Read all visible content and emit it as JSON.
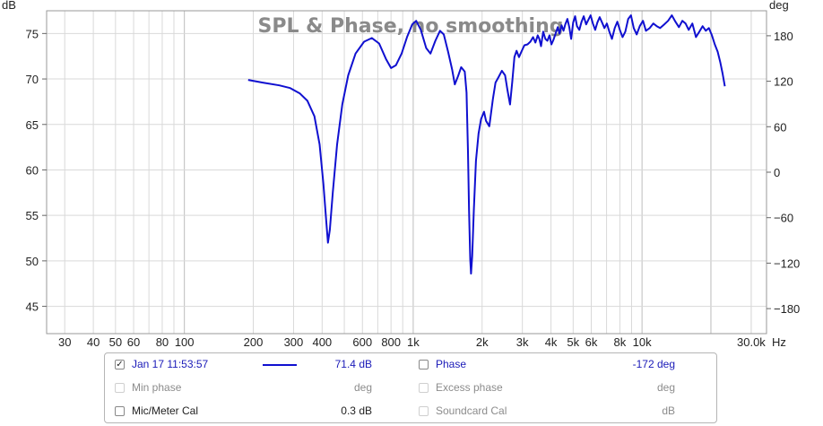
{
  "chart_data": {
    "type": "line",
    "title": "SPL & Phase, no smoothing",
    "x_unit": "Hz",
    "x_scale": "log",
    "x_range": [
      25,
      35000
    ],
    "x_ticks": [
      {
        "value": 30,
        "label": "30"
      },
      {
        "value": 40,
        "label": "40"
      },
      {
        "value": 50,
        "label": "50"
      },
      {
        "value": 60,
        "label": "60"
      },
      {
        "value": 80,
        "label": "80"
      },
      {
        "value": 100,
        "label": "100"
      },
      {
        "value": 200,
        "label": "200"
      },
      {
        "value": 300,
        "label": "300"
      },
      {
        "value": 400,
        "label": "400"
      },
      {
        "value": 600,
        "label": "600"
      },
      {
        "value": 800,
        "label": "800"
      },
      {
        "value": 1000,
        "label": "1k"
      },
      {
        "value": 2000,
        "label": "2k"
      },
      {
        "value": 3000,
        "label": "3k"
      },
      {
        "value": 4000,
        "label": "4k"
      },
      {
        "value": 5000,
        "label": "5k"
      },
      {
        "value": 6000,
        "label": "6k"
      },
      {
        "value": 8000,
        "label": "8k"
      },
      {
        "value": 10000,
        "label": "10k"
      },
      {
        "value": 30000,
        "label": "30.0k"
      }
    ],
    "x_unit_label": "Hz",
    "y_left_label": "dB",
    "y_left_range": [
      42,
      77.5
    ],
    "y_left_ticks": [
      45,
      50,
      55,
      60,
      65,
      70,
      75
    ],
    "y_right_label": "deg",
    "y_right_range": [
      -213,
      213
    ],
    "y_right_ticks": [
      -180,
      -120,
      -60,
      0,
      60,
      120,
      180
    ],
    "grid": true,
    "series": [
      {
        "name": "Jan 17 11:53:57",
        "color": "#1010d0",
        "points": [
          [
            190,
            69.9
          ],
          [
            220,
            69.6
          ],
          [
            260,
            69.3
          ],
          [
            290,
            69.0
          ],
          [
            320,
            68.4
          ],
          [
            345,
            67.6
          ],
          [
            370,
            65.9
          ],
          [
            390,
            62.8
          ],
          [
            405,
            58.5
          ],
          [
            418,
            54.0
          ],
          [
            424,
            52.0
          ],
          [
            432,
            53.4
          ],
          [
            445,
            57.5
          ],
          [
            465,
            62.8
          ],
          [
            490,
            67.2
          ],
          [
            520,
            70.4
          ],
          [
            560,
            72.8
          ],
          [
            610,
            74.1
          ],
          [
            660,
            74.5
          ],
          [
            710,
            73.9
          ],
          [
            760,
            72.2
          ],
          [
            800,
            71.2
          ],
          [
            840,
            71.5
          ],
          [
            890,
            72.8
          ],
          [
            940,
            74.6
          ],
          [
            990,
            76.0
          ],
          [
            1030,
            76.4
          ],
          [
            1080,
            75.4
          ],
          [
            1140,
            73.4
          ],
          [
            1190,
            72.8
          ],
          [
            1250,
            74.2
          ],
          [
            1310,
            75.3
          ],
          [
            1360,
            74.9
          ],
          [
            1420,
            73.0
          ],
          [
            1480,
            71.0
          ],
          [
            1520,
            69.4
          ],
          [
            1570,
            70.3
          ],
          [
            1620,
            71.3
          ],
          [
            1680,
            70.8
          ],
          [
            1710,
            68.5
          ],
          [
            1735,
            62.0
          ],
          [
            1755,
            55.5
          ],
          [
            1775,
            50.2
          ],
          [
            1790,
            48.6
          ],
          [
            1810,
            50.5
          ],
          [
            1840,
            55.5
          ],
          [
            1880,
            61.0
          ],
          [
            1930,
            64.0
          ],
          [
            1980,
            65.6
          ],
          [
            2040,
            66.4
          ],
          [
            2080,
            65.4
          ],
          [
            2150,
            64.8
          ],
          [
            2230,
            67.8
          ],
          [
            2290,
            69.6
          ],
          [
            2360,
            70.2
          ],
          [
            2440,
            70.9
          ],
          [
            2520,
            70.4
          ],
          [
            2580,
            68.8
          ],
          [
            2650,
            67.2
          ],
          [
            2710,
            69.7
          ],
          [
            2770,
            72.4
          ],
          [
            2830,
            73.1
          ],
          [
            2900,
            72.4
          ],
          [
            2970,
            73.0
          ],
          [
            3060,
            73.7
          ],
          [
            3160,
            73.8
          ],
          [
            3250,
            74.1
          ],
          [
            3340,
            74.6
          ],
          [
            3420,
            74.0
          ],
          [
            3500,
            74.8
          ],
          [
            3560,
            74.4
          ],
          [
            3620,
            73.6
          ],
          [
            3700,
            75.2
          ],
          [
            3780,
            74.4
          ],
          [
            3860,
            74.2
          ],
          [
            3940,
            74.8
          ],
          [
            4020,
            73.8
          ],
          [
            4100,
            74.3
          ],
          [
            4180,
            74.9
          ],
          [
            4280,
            75.7
          ],
          [
            4360,
            75.0
          ],
          [
            4450,
            75.9
          ],
          [
            4540,
            75.3
          ],
          [
            4620,
            76.0
          ],
          [
            4720,
            76.6
          ],
          [
            4810,
            75.7
          ],
          [
            4900,
            74.4
          ],
          [
            5000,
            76.2
          ],
          [
            5100,
            76.9
          ],
          [
            5200,
            75.8
          ],
          [
            5320,
            75.4
          ],
          [
            5440,
            76.3
          ],
          [
            5560,
            76.9
          ],
          [
            5700,
            76.0
          ],
          [
            5830,
            76.5
          ],
          [
            5960,
            77.0
          ],
          [
            6100,
            76.1
          ],
          [
            6240,
            75.4
          ],
          [
            6380,
            76.2
          ],
          [
            6530,
            76.8
          ],
          [
            6690,
            76.2
          ],
          [
            6850,
            75.6
          ],
          [
            7020,
            76.1
          ],
          [
            7200,
            75.2
          ],
          [
            7390,
            74.4
          ],
          [
            7600,
            75.6
          ],
          [
            7800,
            76.3
          ],
          [
            8000,
            75.4
          ],
          [
            8220,
            74.6
          ],
          [
            8450,
            75.2
          ],
          [
            8700,
            76.6
          ],
          [
            8950,
            77.0
          ],
          [
            9200,
            75.6
          ],
          [
            9480,
            74.9
          ],
          [
            9770,
            75.8
          ],
          [
            10100,
            76.4
          ],
          [
            10400,
            75.3
          ],
          [
            10800,
            75.6
          ],
          [
            11200,
            76.1
          ],
          [
            11600,
            75.8
          ],
          [
            12000,
            75.6
          ],
          [
            12500,
            76.0
          ],
          [
            13000,
            76.4
          ],
          [
            13500,
            77.0
          ],
          [
            14000,
            76.3
          ],
          [
            14500,
            75.7
          ],
          [
            15000,
            76.4
          ],
          [
            15500,
            76.1
          ],
          [
            16000,
            75.4
          ],
          [
            16600,
            76.1
          ],
          [
            17200,
            74.6
          ],
          [
            17800,
            75.2
          ],
          [
            18400,
            75.8
          ],
          [
            19000,
            75.3
          ],
          [
            19600,
            75.6
          ],
          [
            20200,
            74.8
          ],
          [
            20800,
            73.8
          ],
          [
            21400,
            73.0
          ],
          [
            22000,
            71.8
          ],
          [
            22500,
            70.6
          ],
          [
            23000,
            69.2
          ]
        ]
      }
    ]
  },
  "legend": {
    "row1": {
      "checked_mark": "✓",
      "name": "Jan 17 11:53:57",
      "value": "71.4 dB",
      "phase_label": "Phase",
      "phase_value": "-172 deg"
    },
    "row2": {
      "min_phase_label": "Min phase",
      "min_phase_unit": "deg",
      "excess_phase_label": "Excess phase",
      "excess_phase_unit": "deg"
    },
    "row3": {
      "mic_cal_label": "Mic/Meter Cal",
      "mic_cal_value": "0.3 dB",
      "soundcard_cal_label": "Soundcard Cal",
      "soundcard_cal_unit": "dB"
    }
  }
}
